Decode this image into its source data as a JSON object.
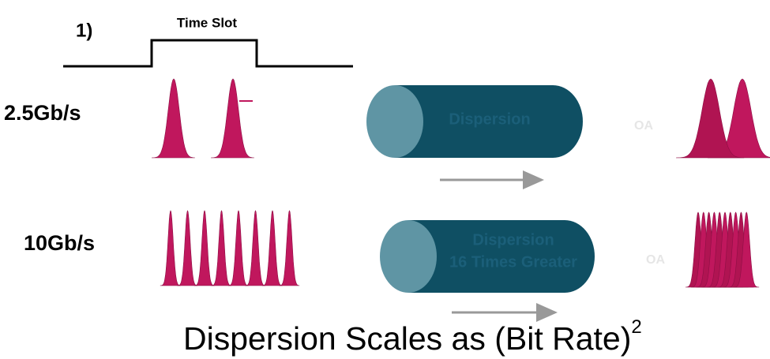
{
  "step_label": "1)",
  "time_slot_label": "Time Slot",
  "rows": [
    {
      "rate": "2.5Gb/s",
      "fiber_text": [
        "Dispersion"
      ],
      "amplifier": "OA"
    },
    {
      "rate": "10Gb/s",
      "fiber_text": [
        "Dispersion",
        "16 Times Greater"
      ],
      "amplifier": "OA"
    }
  ],
  "caption": {
    "text": "Dispersion Scales as (Bit Rate)",
    "superscript": "2"
  }
}
